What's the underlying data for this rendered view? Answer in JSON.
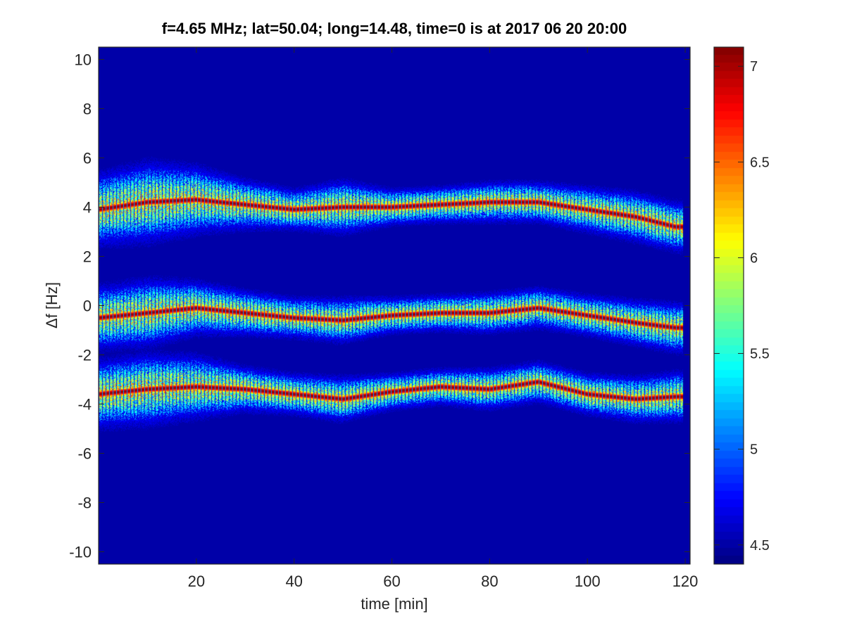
{
  "chart_data": {
    "type": "heatmap",
    "title": "f=4.65 MHz;  lat=50.04; long=14.48, time=0 is at 2017 06 20 20:00",
    "xlabel": "time [min]",
    "ylabel": "Δf [Hz]",
    "xlim": [
      0,
      121
    ],
    "ylim": [
      -10.5,
      10.5
    ],
    "xticks": [
      20,
      40,
      60,
      80,
      100,
      120
    ],
    "yticks": [
      10,
      8,
      6,
      4,
      2,
      0,
      -2,
      -4,
      -6,
      -8,
      -10
    ],
    "colorbar": {
      "colormap": "jet",
      "clim": [
        4.4,
        7.1
      ],
      "ticks": [
        7,
        6.5,
        6,
        5.5,
        5,
        4.5
      ]
    },
    "grid": false,
    "series": [
      {
        "t": [
          0,
          10,
          20,
          30,
          40,
          50,
          60,
          70,
          80,
          90,
          100,
          110,
          118
        ],
        "df": [
          3.9,
          4.2,
          4.3,
          4.1,
          3.9,
          4.0,
          4.0,
          4.1,
          4.2,
          4.2,
          3.9,
          3.6,
          3.2
        ],
        "spread": [
          1.6,
          1.8,
          1.5,
          1.1,
          0.9,
          1.2,
          0.8,
          0.8,
          0.9,
          0.9,
          1.0,
          1.1,
          1.1
        ]
      },
      {
        "t": [
          0,
          10,
          20,
          30,
          40,
          50,
          60,
          70,
          80,
          90,
          100,
          110,
          118
        ],
        "df": [
          -0.5,
          -0.3,
          -0.1,
          -0.3,
          -0.5,
          -0.6,
          -0.4,
          -0.3,
          -0.3,
          -0.1,
          -0.4,
          -0.7,
          -0.9
        ],
        "spread": [
          1.4,
          1.5,
          1.2,
          1.0,
          0.9,
          1.0,
          0.8,
          0.8,
          0.9,
          0.9,
          0.9,
          1.0,
          1.1
        ]
      },
      {
        "t": [
          0,
          10,
          20,
          30,
          40,
          50,
          60,
          70,
          80,
          90,
          100,
          110,
          118
        ],
        "df": [
          -3.6,
          -3.4,
          -3.3,
          -3.4,
          -3.6,
          -3.8,
          -3.5,
          -3.3,
          -3.4,
          -3.1,
          -3.6,
          -3.8,
          -3.7
        ],
        "spread": [
          1.5,
          1.6,
          1.4,
          1.0,
          0.9,
          1.0,
          0.8,
          0.8,
          0.9,
          0.9,
          0.9,
          1.0,
          1.1
        ]
      }
    ]
  }
}
